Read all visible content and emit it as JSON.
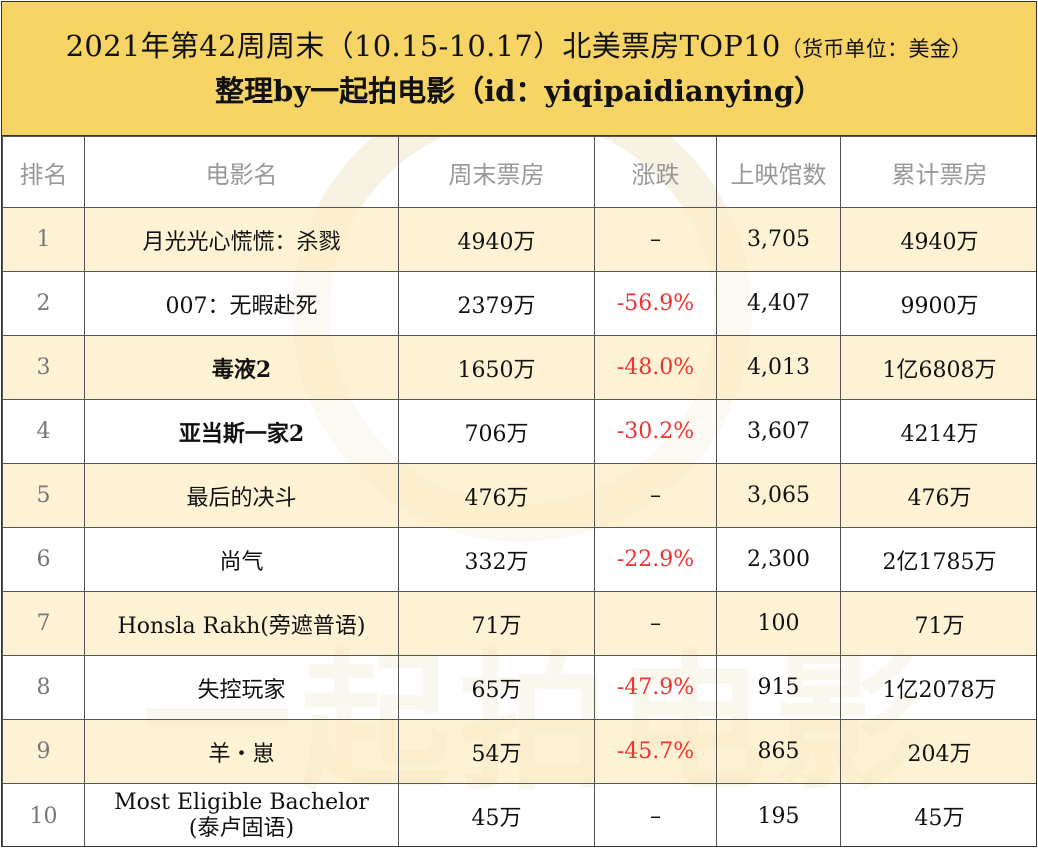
{
  "title": {
    "line1": "2021年第42周周末（10.15-10.17）北美票房TOP10",
    "unit": "（货币单位：美金）",
    "line2": "整理by一起拍电影（id：yiqipaidianying）"
  },
  "watermark": "一起拍电影",
  "columns": [
    "排名",
    "电影名",
    "周末票房",
    "涨跌",
    "上映馆数",
    "累计票房"
  ],
  "rows": [
    {
      "rank": "1",
      "name": "月光光心慌慌：杀戮",
      "weekend": "4940万",
      "change": "–",
      "theaters": "3,705",
      "total": "4940万"
    },
    {
      "rank": "2",
      "name": "007：无暇赴死",
      "weekend": "2379万",
      "change": "-56.9%",
      "theaters": "4,407",
      "total": "9900万"
    },
    {
      "rank": "3",
      "name": "毒液2",
      "weekend": "1650万",
      "change": "-48.0%",
      "theaters": "4,013",
      "total": "1亿6808万"
    },
    {
      "rank": "4",
      "name": "亚当斯一家2",
      "weekend": "706万",
      "change": "-30.2%",
      "theaters": "3,607",
      "total": "4214万"
    },
    {
      "rank": "5",
      "name": "最后的决斗",
      "weekend": "476万",
      "change": "–",
      "theaters": "3,065",
      "total": "476万"
    },
    {
      "rank": "6",
      "name": "尚气",
      "weekend": "332万",
      "change": "-22.9%",
      "theaters": "2,300",
      "total": "2亿1785万"
    },
    {
      "rank": "7",
      "name": "Honsla Rakh(旁遮普语)",
      "weekend": "71万",
      "change": "–",
      "theaters": "100",
      "total": "71万"
    },
    {
      "rank": "8",
      "name": "失控玩家",
      "weekend": "65万",
      "change": "-47.9%",
      "theaters": "915",
      "total": "1亿2078万"
    },
    {
      "rank": "9",
      "name": "羊・崽",
      "weekend": "54万",
      "change": "-45.7%",
      "theaters": "865",
      "total": "204万"
    },
    {
      "rank": "10",
      "name_line1": "Most Eligible Bachelor",
      "name_line2": "(泰卢固语)",
      "weekend": "45万",
      "change": "–",
      "theaters": "195",
      "total": "45万"
    }
  ],
  "colors": {
    "header_bg": "#f6d566",
    "odd_row_bg": "#fcefc8",
    "negative": "#e33333"
  }
}
